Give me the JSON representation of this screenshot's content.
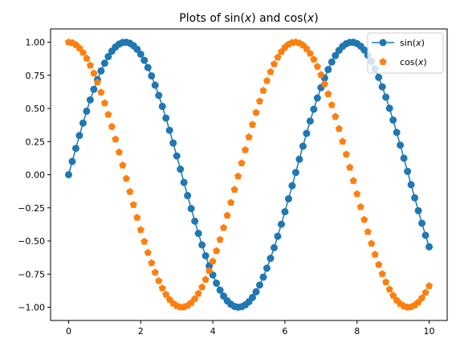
{
  "chart_data": {
    "type": "line",
    "title": "Plots of sin(x) and cos(x)",
    "title_parts": {
      "a": "Plots of sin(",
      "b": "x",
      "c": ") and cos(",
      "d": "x",
      "e": ")"
    },
    "xlabel": "",
    "ylabel": "",
    "xlim": [
      -0.5,
      10.5
    ],
    "ylim": [
      -1.1,
      1.1
    ],
    "x_ticks": [
      0,
      2,
      4,
      6,
      8,
      10
    ],
    "x_tick_labels": [
      "0",
      "2",
      "4",
      "6",
      "8",
      "10"
    ],
    "y_ticks": [
      1.0,
      0.75,
      0.5,
      0.25,
      0.0,
      -0.25,
      -0.5,
      -0.75,
      -1.0
    ],
    "y_tick_labels": [
      "1.00",
      "0.75",
      "0.50",
      "0.25",
      "0.00",
      "−0.25",
      "−0.50",
      "−0.75",
      "−1.00"
    ],
    "x": [
      0,
      0.1,
      0.2,
      0.3,
      0.4,
      0.5,
      0.6,
      0.7,
      0.8,
      0.9,
      1.0,
      1.1,
      1.2,
      1.3,
      1.4,
      1.5,
      1.6,
      1.7,
      1.8,
      1.9,
      2.0,
      2.1,
      2.2,
      2.3,
      2.4,
      2.5,
      2.6,
      2.7,
      2.8,
      2.9,
      3.0,
      3.1,
      3.2,
      3.3,
      3.4,
      3.5,
      3.6,
      3.7,
      3.8,
      3.9,
      4.0,
      4.1,
      4.2,
      4.3,
      4.4,
      4.5,
      4.6,
      4.7,
      4.8,
      4.9,
      5.0,
      5.1,
      5.2,
      5.3,
      5.4,
      5.5,
      5.6,
      5.7,
      5.8,
      5.9,
      6.0,
      6.1,
      6.2,
      6.3,
      6.4,
      6.5,
      6.6,
      6.7,
      6.8,
      6.9,
      7.0,
      7.1,
      7.2,
      7.3,
      7.4,
      7.5,
      7.6,
      7.7,
      7.8,
      7.9,
      8.0,
      8.1,
      8.2,
      8.3,
      8.4,
      8.5,
      8.6,
      8.7,
      8.8,
      8.9,
      9.0,
      9.1,
      9.2,
      9.3,
      9.4,
      9.5,
      9.6,
      9.7,
      9.8,
      9.9,
      10.0
    ],
    "series": [
      {
        "name": "sin(x)",
        "name_parts": {
          "a": "sin(",
          "b": "x",
          "c": ")"
        },
        "color": "#1f77b4",
        "marker": "circle",
        "linestyle": "solid",
        "y": [
          0.0,
          0.0998,
          0.1987,
          0.2955,
          0.3894,
          0.4794,
          0.5646,
          0.6442,
          0.7174,
          0.7833,
          0.8415,
          0.8912,
          0.932,
          0.9636,
          0.9854,
          0.9975,
          0.9996,
          0.9917,
          0.9738,
          0.9463,
          0.9093,
          0.8632,
          0.8085,
          0.7457,
          0.6755,
          0.5985,
          0.5155,
          0.4274,
          0.335,
          0.2392,
          0.1411,
          0.0416,
          -0.0584,
          -0.1577,
          -0.2555,
          -0.3508,
          -0.4425,
          -0.5298,
          -0.6119,
          -0.6878,
          -0.7568,
          -0.8183,
          -0.8716,
          -0.9162,
          -0.9516,
          -0.9775,
          -0.9937,
          -0.9999,
          -0.9962,
          -0.9825,
          -0.9589,
          -0.9258,
          -0.8835,
          -0.8323,
          -0.7728,
          -0.7055,
          -0.6313,
          -0.5507,
          -0.4646,
          -0.3739,
          -0.2794,
          -0.1822,
          -0.0831,
          0.0168,
          0.1165,
          0.2151,
          0.3115,
          0.4048,
          0.4941,
          0.5784,
          0.657,
          0.729,
          0.7937,
          0.8504,
          0.8987,
          0.938,
          0.968,
          0.9882,
          0.9985,
          0.9989,
          0.9894,
          0.9699,
          0.9407,
          0.9022,
          0.8546,
          0.7985,
          0.7344,
          0.663,
          0.5849,
          0.501,
          0.4121,
          0.319,
          0.2229,
          0.1245,
          0.0248,
          -0.0752,
          -0.1743,
          -0.2718,
          -0.3665,
          -0.4575,
          -0.544
        ]
      },
      {
        "name": "cos(x)",
        "name_parts": {
          "a": "cos(",
          "b": "x",
          "c": ")"
        },
        "color": "#ff7f0e",
        "marker": "pentagon",
        "linestyle": "none",
        "y": [
          1.0,
          0.995,
          0.9801,
          0.9553,
          0.9211,
          0.8776,
          0.8253,
          0.7648,
          0.6967,
          0.6216,
          0.5403,
          0.4536,
          0.3624,
          0.2675,
          0.17,
          0.0707,
          -0.0292,
          -0.1288,
          -0.2272,
          -0.3233,
          -0.4161,
          -0.5048,
          -0.5885,
          -0.6663,
          -0.7374,
          -0.8011,
          -0.8569,
          -0.904,
          -0.9422,
          -0.971,
          -0.99,
          -0.9991,
          -0.9983,
          -0.9875,
          -0.9668,
          -0.9365,
          -0.8968,
          -0.8481,
          -0.791,
          -0.7259,
          -0.6536,
          -0.5748,
          -0.4903,
          -0.4008,
          -0.3073,
          -0.2108,
          -0.1122,
          -0.0124,
          0.0875,
          0.1865,
          0.2837,
          0.378,
          0.4685,
          0.5544,
          0.6347,
          0.7087,
          0.7756,
          0.8347,
          0.8855,
          0.9275,
          0.9602,
          0.9833,
          0.9965,
          0.9999,
          0.9932,
          0.9766,
          0.9502,
          0.9144,
          0.8694,
          0.8157,
          0.7539,
          0.6845,
          0.6084,
          0.5261,
          0.4385,
          0.3466,
          0.2512,
          0.1534,
          0.054,
          -0.046,
          -0.1455,
          -0.2435,
          -0.3392,
          -0.4314,
          -0.5193,
          -0.602,
          -0.6787,
          -0.7486,
          -0.8111,
          -0.8654,
          -0.9111,
          -0.9477,
          -0.9748,
          -0.9922,
          -0.9997,
          -0.9972,
          -0.9847,
          -0.9624,
          -0.9304,
          -0.8892,
          -0.8391
        ]
      }
    ],
    "grid": false,
    "legend_position": "top-right"
  }
}
